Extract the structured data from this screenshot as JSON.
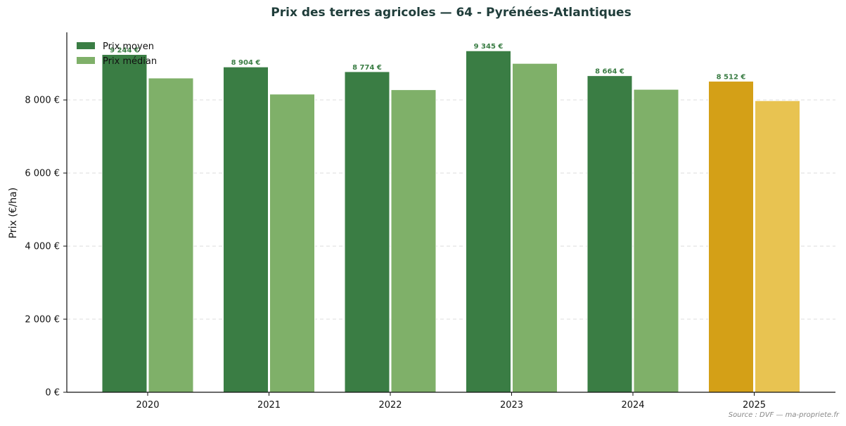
{
  "chart_data": {
    "type": "bar",
    "title": "Prix des terres agricoles — 64 - Pyrénées-Atlantiques",
    "xlabel": "",
    "ylabel": "Prix (€/ha)",
    "categories": [
      "2020",
      "2021",
      "2022",
      "2023",
      "2024",
      "2025"
    ],
    "series": [
      {
        "name": "Prix moyen",
        "values": [
          9244,
          8904,
          8774,
          9345,
          8664,
          8512
        ],
        "labels": [
          "9 244 €",
          "8 904 €",
          "8 774 €",
          "9 345 €",
          "8 664 €",
          "8 512 €"
        ],
        "color": "#3a7d44",
        "highlight_color": "#d4a017"
      },
      {
        "name": "Prix médian",
        "values": [
          8600,
          8160,
          8280,
          9000,
          8290,
          7980
        ],
        "color": "#7fb069",
        "highlight_color": "#e8c351"
      }
    ],
    "highlight_category": "2025",
    "ylim": [
      0,
      9850
    ],
    "yticks": [
      0,
      2000,
      4000,
      6000,
      8000
    ],
    "ytick_labels": [
      "0 €",
      "2 000 €",
      "4 000 €",
      "6 000 €",
      "8 000 €"
    ],
    "grid": "horizontal dashed",
    "legend_position": "top-left"
  },
  "source": "Source : DVF — ma-propriete.fr"
}
